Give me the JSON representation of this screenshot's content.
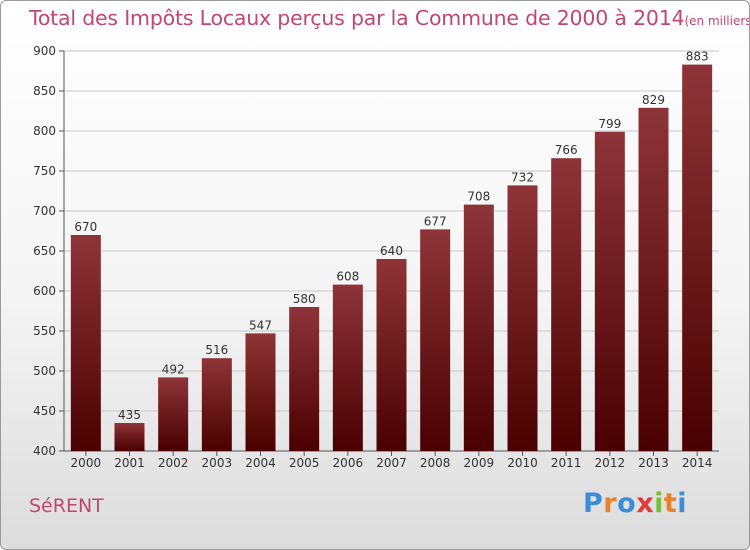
{
  "title": "Total des Impôts Locaux perçus par la Commune de 2000 à 2014",
  "title_unit": "(en milliers d'€)",
  "commune": "SéRENT",
  "logo": {
    "letters": [
      "P",
      "r",
      "o",
      "x",
      "i",
      "t",
      "i"
    ],
    "colors": [
      "#3a8ed8",
      "#e8812c",
      "#3a8ed8",
      "#e23a3a",
      "#7bbd3a",
      "#e8812c",
      "#3a8ed8"
    ]
  },
  "colors": {
    "title": "#c0486e",
    "bar_top": "#8e3438",
    "bar_bottom": "#4a0000",
    "grid": "#c8c8c8"
  },
  "chart_data": {
    "type": "bar",
    "title": "Total des Impôts Locaux perçus par la Commune de 2000 à 2014",
    "xlabel": "",
    "ylabel": "",
    "ylim": [
      400,
      900
    ],
    "yticks": [
      400,
      450,
      500,
      550,
      600,
      650,
      700,
      750,
      800,
      850,
      900
    ],
    "grid": true,
    "categories": [
      "2000",
      "2001",
      "2002",
      "2003",
      "2004",
      "2005",
      "2006",
      "2007",
      "2008",
      "2009",
      "2010",
      "2011",
      "2012",
      "2013",
      "2014"
    ],
    "values": [
      670,
      435,
      492,
      516,
      547,
      580,
      608,
      640,
      677,
      708,
      732,
      766,
      799,
      829,
      883
    ]
  }
}
